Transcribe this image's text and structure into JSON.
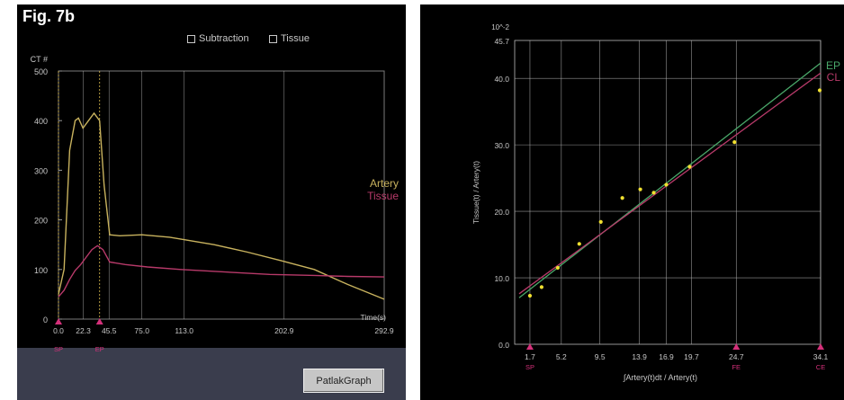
{
  "figure_label": "Fig. 7b",
  "checkboxes": [
    {
      "label": "Subtraction"
    },
    {
      "label": "Tissue"
    }
  ],
  "button": {
    "label": "PatlakGraph"
  },
  "colors": {
    "artery": "#c8b25e",
    "tissue": "#b83a6a",
    "ep": "#4aa86a",
    "cl": "#b83a6a",
    "points": "#f0e030",
    "marker": "#d4307a",
    "grid": "#bbbbbb",
    "axis_text": "#c8c8c8"
  },
  "chart_data": [
    {
      "type": "line",
      "ylabel": "CT #",
      "xlabel": "Time(s)",
      "ylim": [
        0,
        500
      ],
      "xlim": [
        0,
        292.9
      ],
      "yticks": [
        "0",
        "100",
        "200",
        "300",
        "400",
        "500"
      ],
      "xticks": [
        "0.0",
        "22.3",
        "45.5",
        "75.0",
        "113.0",
        "202.9",
        "292.9"
      ],
      "markers": [
        {
          "label": "SP",
          "x": 0.0
        },
        {
          "label": "EP",
          "x": 37.0
        }
      ],
      "legend": [
        "Artery",
        "Tissue"
      ],
      "series": [
        {
          "name": "Artery",
          "x": [
            0,
            5,
            10,
            15,
            18,
            22,
            27,
            32,
            37,
            41,
            46,
            55,
            75,
            100,
            140,
            170,
            200,
            230,
            260,
            292.9
          ],
          "y": [
            50,
            100,
            340,
            400,
            405,
            385,
            400,
            415,
            400,
            270,
            170,
            168,
            170,
            165,
            150,
            135,
            118,
            100,
            70,
            40
          ]
        },
        {
          "name": "Tissue",
          "x": [
            0,
            5,
            10,
            15,
            20,
            25,
            30,
            35,
            40,
            46,
            60,
            80,
            110,
            150,
            190,
            230,
            260,
            292.9
          ],
          "y": [
            45,
            58,
            80,
            98,
            110,
            125,
            140,
            148,
            140,
            115,
            110,
            105,
            100,
            95,
            90,
            88,
            86,
            85
          ]
        }
      ]
    },
    {
      "type": "scatter",
      "scale_label": "10^-2",
      "ylabel": "Tissue(t) / Artery(t)",
      "xlabel": "∫Artery(t)dt / Artery(t)",
      "ylim": [
        0,
        45.7
      ],
      "xlim": [
        0,
        34.1
      ],
      "yticks": [
        "0.0",
        "10.0",
        "20.0",
        "30.0",
        "40.0",
        "45.7"
      ],
      "xticks": [
        "1.7",
        "5.2",
        "9.5",
        "13.9",
        "16.9",
        "19.7",
        "24.7",
        "34.1"
      ],
      "markers": [
        {
          "label": "SP",
          "x": 1.7
        },
        {
          "label": "FE",
          "x": 24.7
        },
        {
          "label": "CE",
          "x": 34.1
        }
      ],
      "legend": [
        "EP",
        "CL"
      ],
      "points": {
        "x": [
          1.7,
          3.0,
          4.8,
          7.2,
          9.6,
          12.0,
          14.0,
          15.5,
          16.9,
          19.5,
          24.5,
          34.0
        ],
        "y": [
          7.3,
          8.6,
          11.5,
          15.1,
          18.4,
          22.0,
          23.3,
          22.8,
          24.0,
          26.7,
          30.4,
          38.2
        ]
      },
      "lines": [
        {
          "name": "EP",
          "x": [
            0.5,
            34.1
          ],
          "y": [
            7.0,
            42.3
          ]
        },
        {
          "name": "CL",
          "x": [
            0.5,
            34.1
          ],
          "y": [
            7.6,
            40.8
          ]
        }
      ]
    }
  ]
}
